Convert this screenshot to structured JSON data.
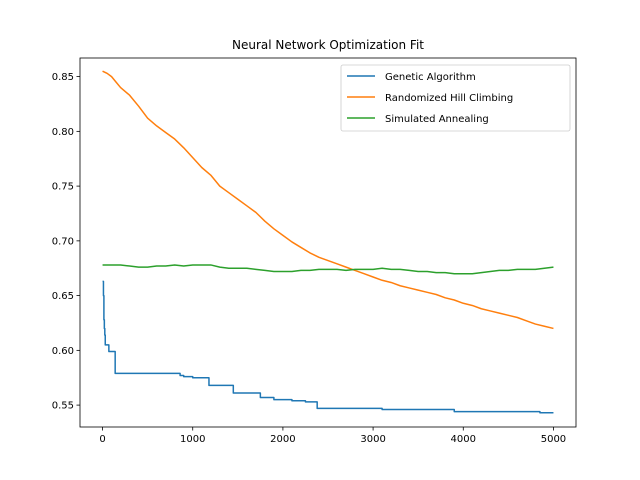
{
  "chart_data": {
    "type": "line",
    "title": "Neural Network Optimization Fit",
    "xlabel": "",
    "ylabel": "",
    "xlim": [
      -250,
      5250
    ],
    "ylim": [
      0.53,
      0.867
    ],
    "xticks": [
      0,
      1000,
      2000,
      3000,
      4000,
      5000
    ],
    "xtick_labels": [
      "0",
      "1000",
      "2000",
      "3000",
      "4000",
      "5000"
    ],
    "yticks": [
      0.55,
      0.6,
      0.65,
      0.7,
      0.75,
      0.8,
      0.85
    ],
    "ytick_labels": [
      "0.55",
      "0.60",
      "0.65",
      "0.70",
      "0.75",
      "0.80",
      "0.85"
    ],
    "grid": false,
    "legend_position": "upper right",
    "series": [
      {
        "name": "Genetic Algorithm",
        "color": "#1f77b4",
        "step": true,
        "x": [
          0,
          10,
          15,
          20,
          25,
          30,
          70,
          140,
          300,
          500,
          800,
          860,
          900,
          1000,
          1150,
          1180,
          1300,
          1450,
          1580,
          1750,
          1900,
          2100,
          2250,
          2380,
          2500,
          2800,
          3100,
          3500,
          3900,
          4200,
          4600,
          4850,
          5000
        ],
        "y": [
          0.663,
          0.65,
          0.628,
          0.62,
          0.614,
          0.605,
          0.599,
          0.579,
          0.579,
          0.579,
          0.579,
          0.577,
          0.576,
          0.575,
          0.575,
          0.568,
          0.568,
          0.561,
          0.561,
          0.557,
          0.555,
          0.554,
          0.553,
          0.547,
          0.547,
          0.547,
          0.546,
          0.546,
          0.544,
          0.544,
          0.544,
          0.543,
          0.543
        ]
      },
      {
        "name": "Randomized Hill Climbing",
        "color": "#ff7f0e",
        "step": false,
        "x": [
          0,
          50,
          100,
          150,
          200,
          300,
          400,
          500,
          600,
          700,
          800,
          900,
          1000,
          1100,
          1200,
          1300,
          1400,
          1500,
          1600,
          1700,
          1800,
          1900,
          2000,
          2100,
          2200,
          2300,
          2400,
          2500,
          2600,
          2700,
          2800,
          2900,
          3000,
          3100,
          3200,
          3300,
          3400,
          3500,
          3600,
          3700,
          3800,
          3900,
          4000,
          4100,
          4200,
          4300,
          4400,
          4500,
          4600,
          4700,
          4800,
          4900,
          5000
        ],
        "y": [
          0.855,
          0.853,
          0.85,
          0.845,
          0.84,
          0.833,
          0.823,
          0.812,
          0.805,
          0.799,
          0.793,
          0.785,
          0.776,
          0.767,
          0.76,
          0.75,
          0.744,
          0.738,
          0.732,
          0.726,
          0.718,
          0.711,
          0.705,
          0.699,
          0.694,
          0.689,
          0.685,
          0.682,
          0.679,
          0.676,
          0.673,
          0.67,
          0.667,
          0.664,
          0.662,
          0.659,
          0.657,
          0.655,
          0.653,
          0.651,
          0.648,
          0.646,
          0.643,
          0.641,
          0.638,
          0.636,
          0.634,
          0.632,
          0.63,
          0.627,
          0.624,
          0.622,
          0.62
        ]
      },
      {
        "name": "Simulated Annealing",
        "color": "#2ca02c",
        "step": false,
        "x": [
          0,
          100,
          200,
          300,
          400,
          500,
          600,
          700,
          800,
          900,
          1000,
          1100,
          1200,
          1300,
          1400,
          1500,
          1600,
          1700,
          1800,
          1900,
          2000,
          2100,
          2200,
          2300,
          2400,
          2500,
          2600,
          2700,
          2800,
          2900,
          3000,
          3100,
          3200,
          3300,
          3400,
          3500,
          3600,
          3700,
          3800,
          3900,
          4000,
          4100,
          4200,
          4300,
          4400,
          4500,
          4600,
          4700,
          4800,
          4900,
          5000
        ],
        "y": [
          0.678,
          0.678,
          0.678,
          0.677,
          0.676,
          0.676,
          0.677,
          0.677,
          0.678,
          0.677,
          0.678,
          0.678,
          0.678,
          0.676,
          0.675,
          0.675,
          0.675,
          0.674,
          0.673,
          0.672,
          0.672,
          0.672,
          0.673,
          0.673,
          0.674,
          0.674,
          0.674,
          0.673,
          0.674,
          0.674,
          0.674,
          0.675,
          0.674,
          0.674,
          0.673,
          0.672,
          0.672,
          0.671,
          0.671,
          0.67,
          0.67,
          0.67,
          0.671,
          0.672,
          0.673,
          0.673,
          0.674,
          0.674,
          0.674,
          0.675,
          0.676
        ]
      }
    ]
  }
}
